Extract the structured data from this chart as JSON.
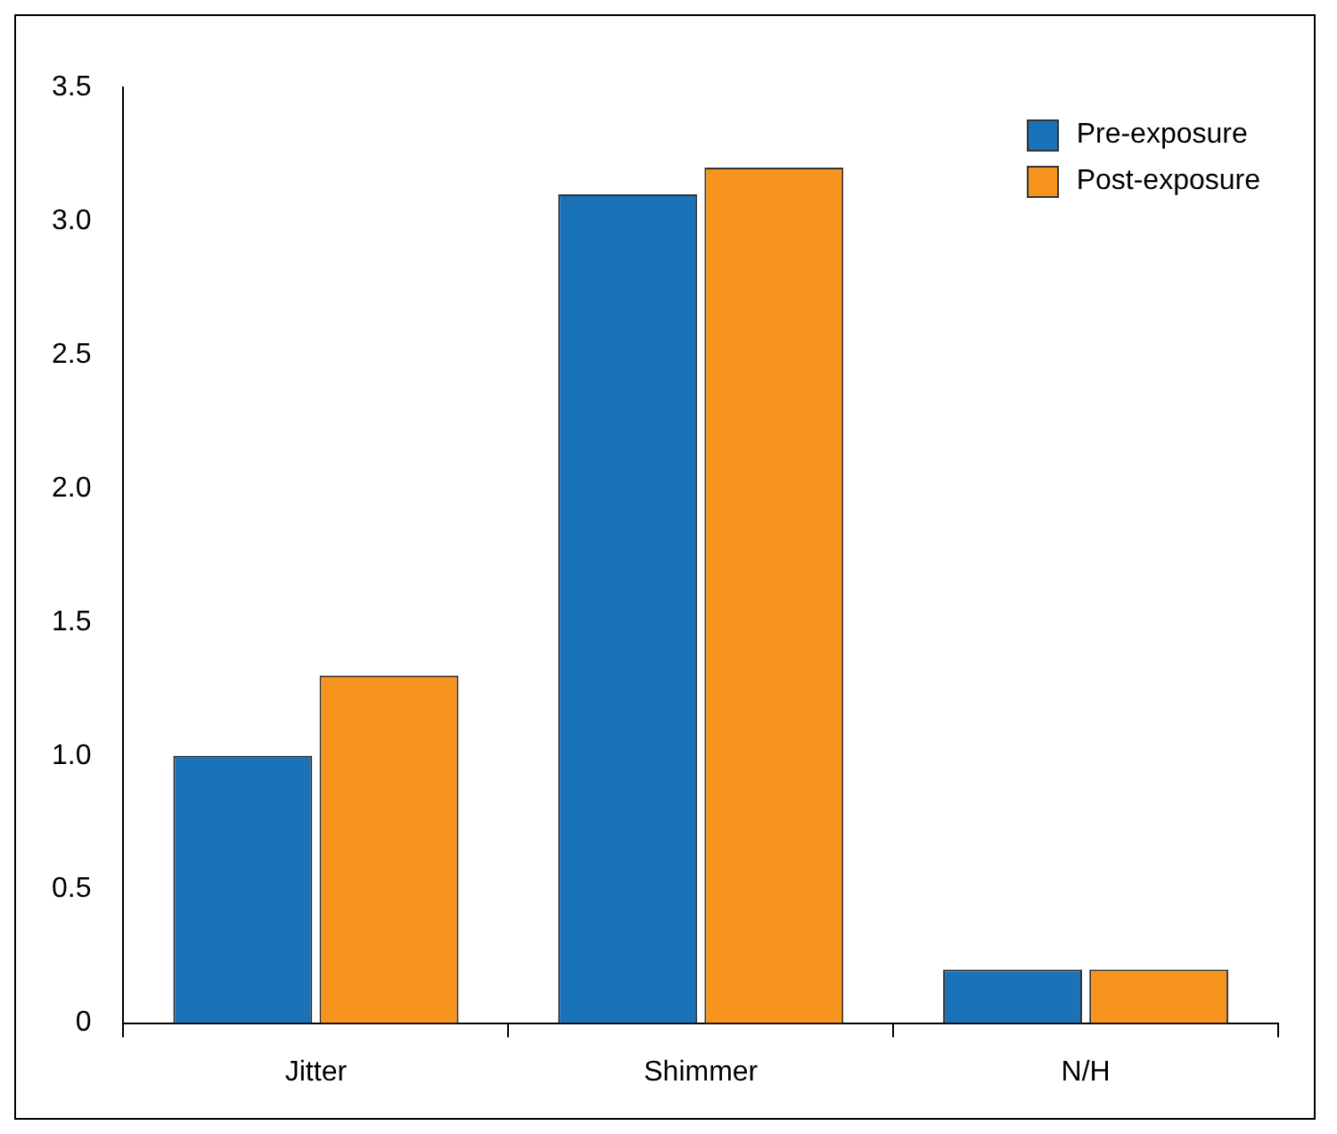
{
  "chart_data": {
    "type": "bar",
    "categories": [
      "Jitter",
      "Shimmer",
      "N/H"
    ],
    "series": [
      {
        "name": "Pre-exposure",
        "color": "#1a72b9",
        "values": [
          1.0,
          3.1,
          0.2
        ]
      },
      {
        "name": "Post-exposure",
        "color": "#f7941d",
        "values": [
          1.3,
          3.2,
          0.2
        ]
      }
    ],
    "ylim": [
      0,
      3.5
    ],
    "yticks": [
      0,
      0.5,
      {
        "value": 1,
        "label": "1.0"
      },
      1.5,
      {
        "value": 2,
        "label": "2.0"
      },
      2.5,
      {
        "value": 3,
        "label": "3.0"
      },
      3.5
    ],
    "grid": false,
    "legend": "top right"
  }
}
